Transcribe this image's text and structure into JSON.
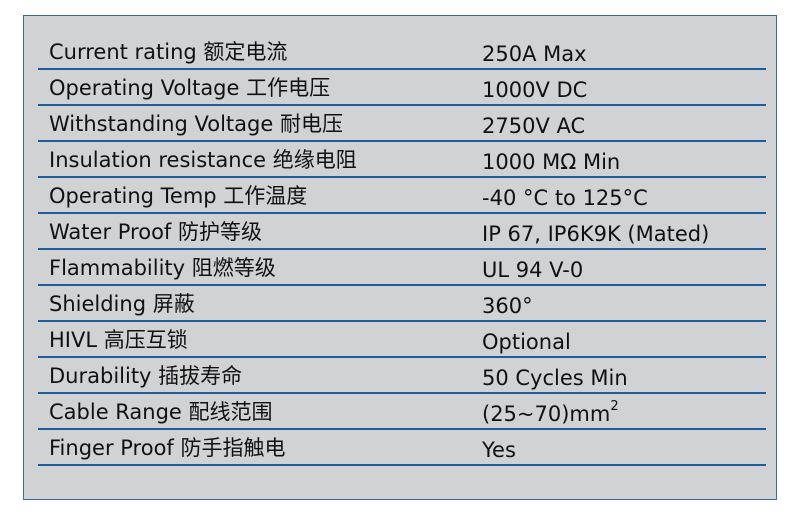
{
  "specs": [
    {
      "label": "Current rating 额定电流",
      "value": "250A Max"
    },
    {
      "label": "Operating Voltage 工作电压",
      "value": "1000V DC"
    },
    {
      "label": "Withstanding Voltage 耐电压",
      "value": "2750V AC"
    },
    {
      "label": "Insulation resistance 绝缘电阻",
      "value": "1000 MΩ Min"
    },
    {
      "label": "Operating Temp 工作温度",
      "value": "-40 °C to 125°C"
    },
    {
      "label": "Water Proof 防护等级",
      "value": "IP 67, IP6K9K (Mated)"
    },
    {
      "label": "Flammability 阻燃等级",
      "value": "UL 94 V-0"
    },
    {
      "label": "Shielding 屏蔽",
      "value": "360°"
    },
    {
      "label": "HIVL 高压互锁",
      "value": "Optional"
    },
    {
      "label": "Durability 插拔寿命",
      "value": "50 Cycles Min"
    },
    {
      "label": "Cable Range 配线范围",
      "value": "(25~70)mm",
      "value_sup": "2"
    },
    {
      "label": "Finger Proof 防手指触电",
      "value": "Yes"
    }
  ],
  "colors": {
    "panel": "#d1d2d4",
    "rule": "#1f5c9e",
    "border": "#3b6894"
  }
}
